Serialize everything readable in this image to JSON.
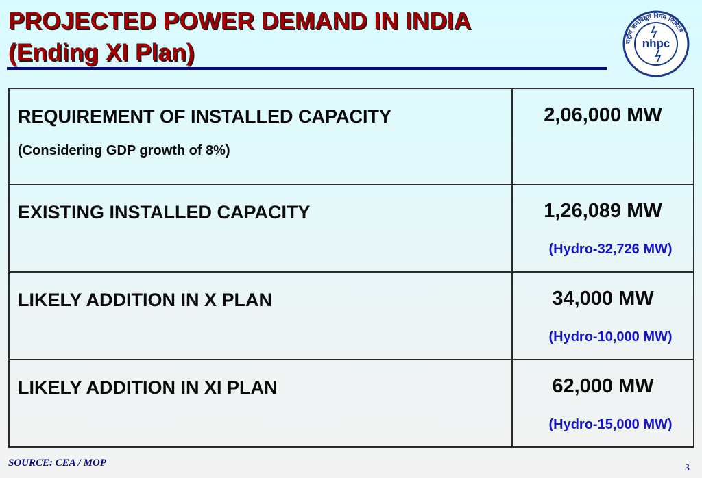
{
  "slide": {
    "title_line1": "PROJECTED POWER DEMAND IN INDIA",
    "title_line2": "(Ending XI Plan)",
    "logo_text": "nhpc",
    "logo_ring_text": "राष्ट्रीय जलविद्युत निगम लिमिटेड",
    "source": "SOURCE: CEA / MOP",
    "page_number": "3"
  },
  "table": {
    "rows": [
      {
        "label": "REQUIREMENT OF INSTALLED CAPACITY",
        "sublabel": "(Considering GDP growth of 8%)",
        "value": "2,06,000 MW",
        "subvalue": ""
      },
      {
        "label": "EXISTING INSTALLED CAPACITY",
        "sublabel": "",
        "value": "1,26,089 MW",
        "subvalue": "(Hydro-32,726 MW)"
      },
      {
        "label": "LIKELY ADDITION IN X PLAN",
        "sublabel": "",
        "value": "34,000 MW",
        "subvalue": "(Hydro-10,000 MW)"
      },
      {
        "label": "LIKELY ADDITION IN XI PLAN",
        "sublabel": "",
        "value": "62,000 MW",
        "subvalue": "(Hydro-15,000 MW)"
      }
    ]
  },
  "colors": {
    "title": "#a00000",
    "rule": "#0a0a7a",
    "hydro_text": "#1414c8",
    "logo": "#1a3a8a"
  }
}
